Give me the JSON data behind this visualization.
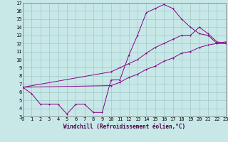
{
  "xlabel": "Windchill (Refroidissement éolien,°C)",
  "bg_color": "#c8e8e8",
  "grid_color": "#a0c8c8",
  "line_color": "#880088",
  "xlim": [
    0,
    23
  ],
  "ylim": [
    3,
    17
  ],
  "xticks": [
    0,
    1,
    2,
    3,
    4,
    5,
    6,
    7,
    8,
    9,
    10,
    11,
    12,
    13,
    14,
    15,
    16,
    17,
    18,
    19,
    20,
    21,
    22,
    23
  ],
  "yticks": [
    3,
    4,
    5,
    6,
    7,
    8,
    9,
    10,
    11,
    12,
    13,
    14,
    15,
    16,
    17
  ],
  "curve1_x": [
    0,
    1,
    2,
    3,
    4,
    5,
    6,
    7,
    8,
    9,
    10,
    11,
    12,
    13,
    14,
    15,
    16,
    17,
    18,
    19,
    20,
    21,
    22,
    23
  ],
  "curve1_y": [
    6.6,
    5.8,
    4.5,
    4.5,
    4.5,
    3.3,
    4.5,
    4.5,
    3.5,
    3.5,
    7.5,
    7.5,
    10.5,
    13.0,
    15.8,
    16.3,
    16.8,
    16.3,
    15.0,
    14.0,
    13.2,
    13.0,
    12.0,
    12.0
  ],
  "curve2_x": [
    0,
    10,
    11,
    12,
    13,
    14,
    15,
    16,
    17,
    18,
    19,
    20,
    21,
    22,
    23
  ],
  "curve2_y": [
    6.6,
    8.5,
    9.0,
    9.5,
    10.0,
    10.8,
    11.5,
    12.0,
    12.5,
    13.0,
    13.0,
    14.0,
    13.2,
    12.2,
    12.0
  ],
  "curve3_x": [
    0,
    10,
    11,
    12,
    13,
    14,
    15,
    16,
    17,
    18,
    19,
    20,
    21,
    22,
    23
  ],
  "curve3_y": [
    6.6,
    6.8,
    7.2,
    7.8,
    8.2,
    8.8,
    9.2,
    9.8,
    10.2,
    10.8,
    11.0,
    11.5,
    11.8,
    12.0,
    12.2
  ],
  "font_size_ticks": 5,
  "font_size_xlabel": 5.5,
  "lw": 0.7,
  "ms": 2.0
}
